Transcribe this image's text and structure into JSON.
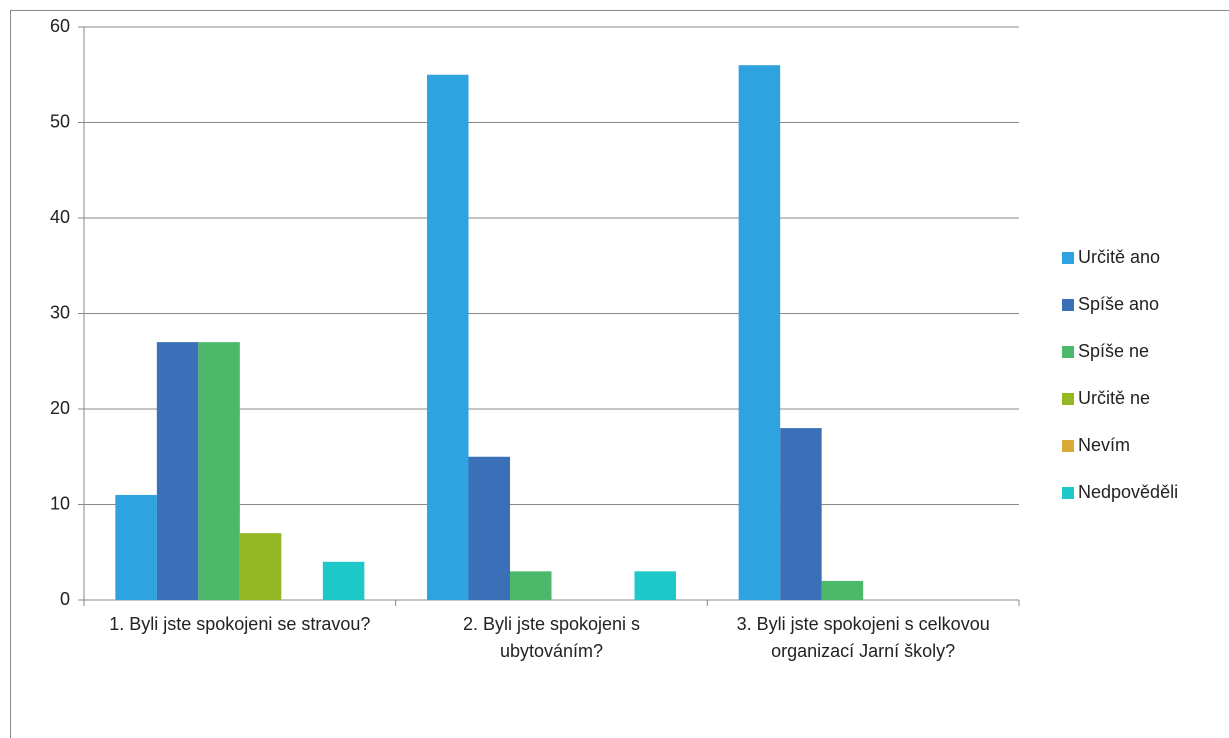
{
  "chart_data": {
    "type": "bar",
    "categories": [
      "1. Byli jste spokojeni se stravou?",
      "2. Byli jste spokojeni s ubytováním?",
      "3. Byli jste spokojeni s celkovou organizací Jarní školy?"
    ],
    "series": [
      {
        "name": "Určitě ano",
        "color": "#2ea3e0",
        "values": [
          11,
          55,
          56
        ]
      },
      {
        "name": "Spíše ano",
        "color": "#3b70b9",
        "values": [
          27,
          15,
          18
        ]
      },
      {
        "name": "Spíše ne",
        "color": "#4cb96a",
        "values": [
          27,
          3,
          2
        ]
      },
      {
        "name": "Určitě ne",
        "color": "#94b823",
        "values": [
          7,
          0,
          0
        ]
      },
      {
        "name": "Nevím",
        "color": "#d9a93a",
        "values": [
          0,
          0,
          0
        ]
      },
      {
        "name": "Nedpověděli",
        "color": "#1fc8c8",
        "values": [
          4,
          3,
          0
        ]
      }
    ],
    "ylim": [
      0,
      60
    ],
    "yticks": [
      0,
      10,
      20,
      30,
      40,
      50,
      60
    ],
    "grid": true,
    "legend": "right"
  }
}
